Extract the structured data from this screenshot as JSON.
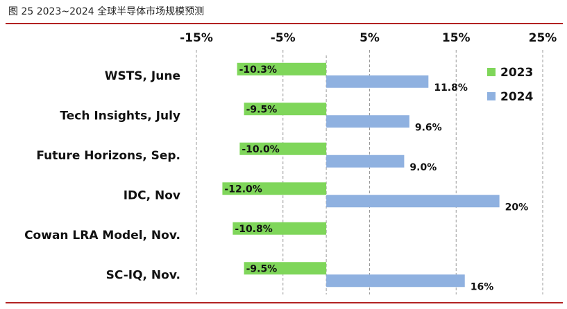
{
  "caption": {
    "figure": "图 25",
    "text": "2023~2024 全球半导体市场规模预测"
  },
  "colors": {
    "series_2023": "#7fd65a",
    "series_2024": "#8fb1e0",
    "rule": "#b22222",
    "grid": "#9a9a9a"
  },
  "chart_data": {
    "type": "bar",
    "orientation": "horizontal",
    "title": "",
    "xlabel": "",
    "ylabel": "",
    "xlim": [
      -15,
      25
    ],
    "xticks": [
      -15,
      -5,
      5,
      15,
      25
    ],
    "xtick_labels": [
      "-15%",
      "-5%",
      "5%",
      "15%",
      "25%"
    ],
    "grid": "vertical dashed",
    "legend_position": "top-right",
    "categories": [
      "WSTS, June",
      "Tech Insights, July",
      "Future Horizons, Sep.",
      "IDC, Nov",
      "Cowan LRA Model, Nov.",
      "SC-IQ, Nov."
    ],
    "series": [
      {
        "name": "2023",
        "values": [
          -10.3,
          -9.5,
          -10.0,
          -12.0,
          -10.8,
          -9.5
        ],
        "labels": [
          "-10.3%",
          "-9.5%",
          "-10.0%",
          "-12.0%",
          "-10.8%",
          "-9.5%"
        ]
      },
      {
        "name": "2024",
        "values": [
          11.8,
          9.6,
          9.0,
          20,
          null,
          16
        ],
        "labels": [
          "11.8%",
          "9.6%",
          "9.0%",
          "20%",
          "",
          "16%"
        ]
      }
    ]
  }
}
